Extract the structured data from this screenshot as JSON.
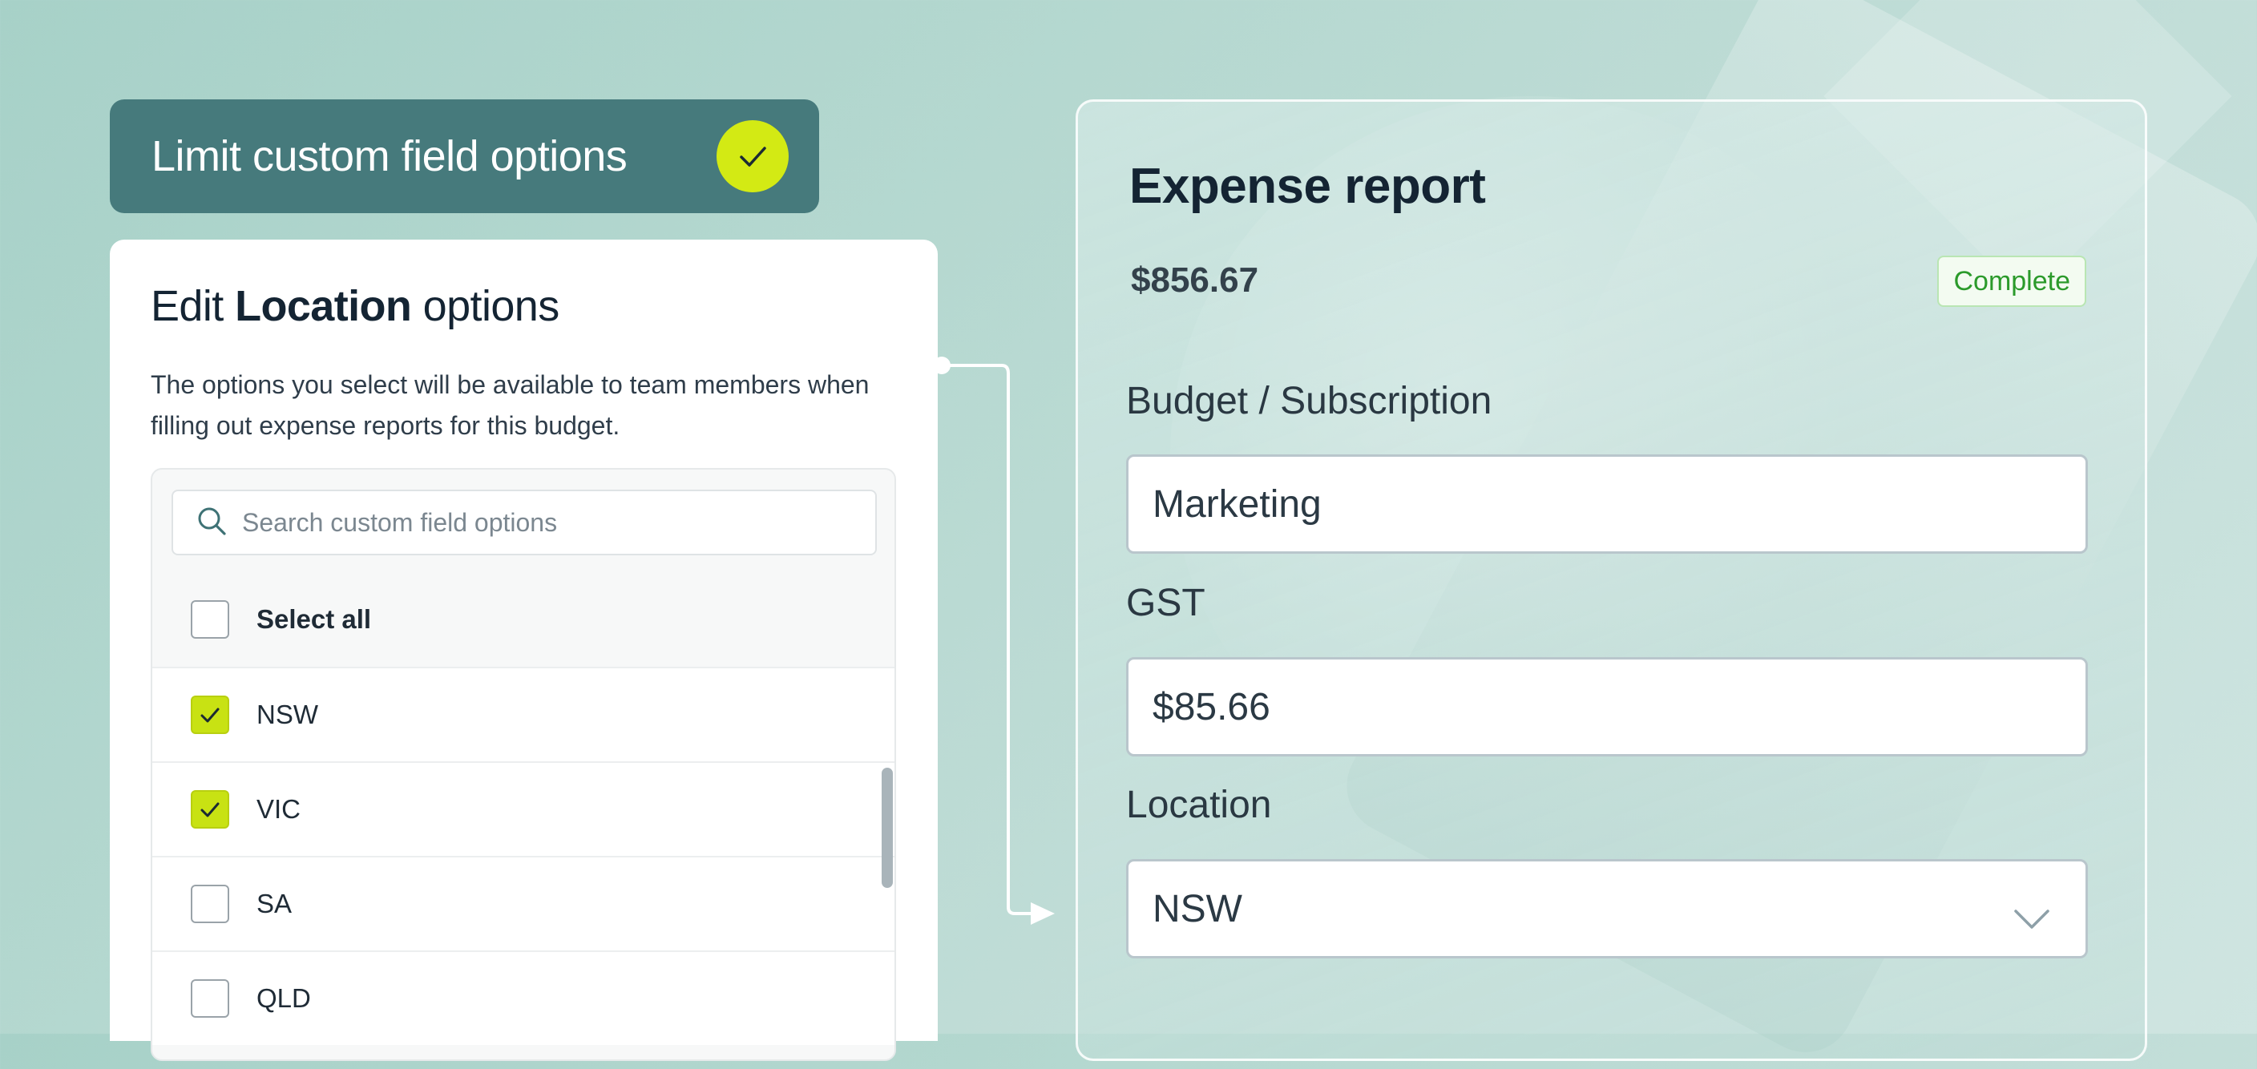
{
  "header": {
    "title": "Limit custom field options"
  },
  "options_panel": {
    "title_prefix": "Edit",
    "title_bold": "Location",
    "title_suffix": "options",
    "description": "The options you select will be available to team members when filling out expense reports for this budget.",
    "search_placeholder": "Search custom field options",
    "select_all_label": "Select all",
    "select_all_checked": false,
    "options": [
      {
        "label": "NSW",
        "checked": true
      },
      {
        "label": "VIC",
        "checked": true
      },
      {
        "label": "SA",
        "checked": false
      },
      {
        "label": "QLD",
        "checked": false
      }
    ]
  },
  "expense_report": {
    "title": "Expense report",
    "amount": "$856.67",
    "status": "Complete",
    "fields": [
      {
        "label": "Budget / Subscription",
        "value": "Marketing"
      },
      {
        "label": "GST",
        "value": "$85.66"
      },
      {
        "label": "Location",
        "value": "NSW"
      }
    ]
  },
  "colors": {
    "accent_lime": "#c8e213",
    "header_teal": "#467a7c",
    "status_green": "#2b9a2b"
  },
  "icons": [
    "check-icon",
    "search-icon",
    "chevron-down-icon",
    "arrow-right-icon"
  ]
}
